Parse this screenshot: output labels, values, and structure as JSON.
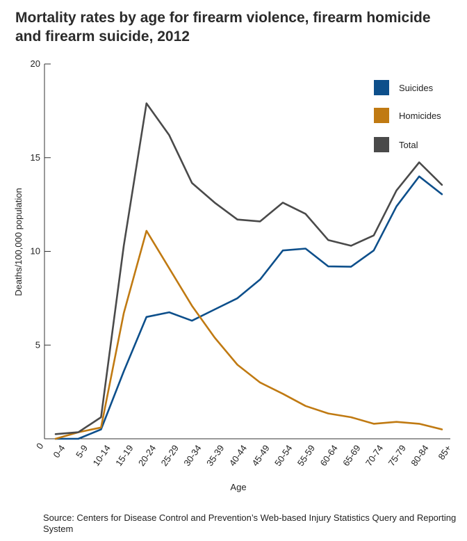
{
  "title": "Mortality rates by age for firearm violence, firearm homicide and firearm suicide, 2012",
  "source": "Source: Centers for Disease Control and Prevention’s Web-based Injury Statistics Query and Reporting System",
  "chart_data": {
    "type": "line",
    "title": "Mortality rates by age for firearm violence, firearm homicide and firearm suicide, 2012",
    "xlabel": "Age",
    "ylabel": "Deaths/100,000 population",
    "ylim": [
      0,
      20
    ],
    "yticks": [
      0,
      5,
      10,
      15,
      20
    ],
    "grid": false,
    "legend_position": "top-right",
    "categories": [
      "0-4",
      "5-9",
      "10-14",
      "15-19",
      "20-24",
      "25-29",
      "30-34",
      "35-39",
      "40-44",
      "45-49",
      "50-54",
      "55-59",
      "60-64",
      "65-69",
      "70-74",
      "75-79",
      "80-84",
      "85+"
    ],
    "series": [
      {
        "name": "Suicides",
        "color": "#0d4f8b",
        "values": [
          0.0,
          0.0,
          0.5,
          3.6,
          6.5,
          6.75,
          6.3,
          6.9,
          7.5,
          8.5,
          10.05,
          10.15,
          9.2,
          9.18,
          10.05,
          12.4,
          14.0,
          13.05
        ]
      },
      {
        "name": "Homicides",
        "color": "#c07a12",
        "values": [
          0.0,
          0.35,
          0.6,
          6.7,
          11.1,
          9.1,
          7.1,
          5.4,
          3.95,
          3.0,
          2.4,
          1.75,
          1.35,
          1.15,
          0.8,
          0.9,
          0.8,
          0.5
        ]
      },
      {
        "name": "Total",
        "color": "#4a4a4a",
        "values": [
          0.25,
          0.35,
          1.15,
          10.3,
          17.9,
          16.2,
          13.65,
          12.6,
          11.7,
          11.6,
          12.6,
          12.0,
          10.6,
          10.3,
          10.85,
          13.25,
          14.75,
          13.55
        ]
      }
    ]
  }
}
